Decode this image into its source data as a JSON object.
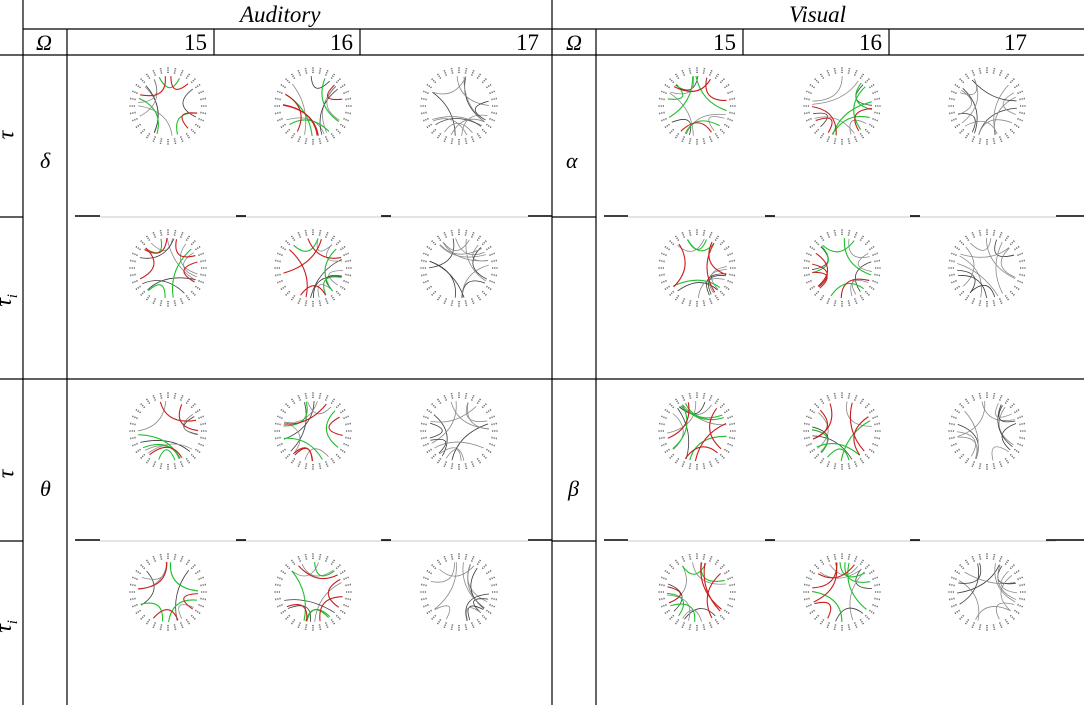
{
  "groups": [
    {
      "title": "Auditory",
      "columns": [
        "15",
        "16",
        "17"
      ],
      "band_top": "δ",
      "band_bottom": "θ"
    },
    {
      "title": "Visual",
      "columns": [
        "15",
        "16",
        "17"
      ],
      "band_top": "α",
      "band_bottom": "β"
    }
  ],
  "omega_label": "Ω",
  "row_labels": [
    "τ",
    "τi",
    "τ",
    "τi"
  ],
  "colors": {
    "line": "#000000",
    "chord_gray": "#8a8a8a",
    "chord_dark": "#3a3a3a",
    "chord_red": "#c81e1e",
    "chord_green": "#1fbf2c",
    "divider": "#c8c8c8"
  },
  "chord_panels": [
    {
      "group": "Auditory",
      "col": "15",
      "row": 0,
      "red": 3,
      "green": 3,
      "gray": 6,
      "seed": 11
    },
    {
      "group": "Auditory",
      "col": "16",
      "row": 0,
      "red": 4,
      "green": 3,
      "gray": 6,
      "seed": 12
    },
    {
      "group": "Auditory",
      "col": "17",
      "row": 0,
      "red": 0,
      "green": 0,
      "gray": 12,
      "seed": 13
    },
    {
      "group": "Auditory",
      "col": "15",
      "row": 1,
      "red": 4,
      "green": 3,
      "gray": 7,
      "seed": 14
    },
    {
      "group": "Auditory",
      "col": "16",
      "row": 1,
      "red": 4,
      "green": 3,
      "gray": 7,
      "seed": 15
    },
    {
      "group": "Auditory",
      "col": "17",
      "row": 1,
      "red": 0,
      "green": 0,
      "gray": 13,
      "seed": 16
    },
    {
      "group": "Auditory",
      "col": "15",
      "row": 2,
      "red": 3,
      "green": 3,
      "gray": 6,
      "seed": 17
    },
    {
      "group": "Auditory",
      "col": "16",
      "row": 2,
      "red": 4,
      "green": 3,
      "gray": 6,
      "seed": 18
    },
    {
      "group": "Auditory",
      "col": "17",
      "row": 2,
      "red": 0,
      "green": 0,
      "gray": 12,
      "seed": 19
    },
    {
      "group": "Auditory",
      "col": "15",
      "row": 3,
      "red": 3,
      "green": 3,
      "gray": 5,
      "seed": 20
    },
    {
      "group": "Auditory",
      "col": "16",
      "row": 3,
      "red": 4,
      "green": 4,
      "gray": 5,
      "seed": 21
    },
    {
      "group": "Auditory",
      "col": "17",
      "row": 3,
      "red": 0,
      "green": 0,
      "gray": 12,
      "seed": 22
    },
    {
      "group": "Visual",
      "col": "15",
      "row": 0,
      "red": 3,
      "green": 4,
      "gray": 6,
      "seed": 31
    },
    {
      "group": "Visual",
      "col": "16",
      "row": 0,
      "red": 3,
      "green": 4,
      "gray": 6,
      "seed": 32
    },
    {
      "group": "Visual",
      "col": "17",
      "row": 0,
      "red": 0,
      "green": 0,
      "gray": 12,
      "seed": 33
    },
    {
      "group": "Visual",
      "col": "15",
      "row": 1,
      "red": 3,
      "green": 3,
      "gray": 7,
      "seed": 34
    },
    {
      "group": "Visual",
      "col": "16",
      "row": 1,
      "red": 4,
      "green": 4,
      "gray": 6,
      "seed": 35
    },
    {
      "group": "Visual",
      "col": "17",
      "row": 1,
      "red": 0,
      "green": 0,
      "gray": 12,
      "seed": 36
    },
    {
      "group": "Visual",
      "col": "15",
      "row": 2,
      "red": 4,
      "green": 4,
      "gray": 6,
      "seed": 37
    },
    {
      "group": "Visual",
      "col": "16",
      "row": 2,
      "red": 4,
      "green": 4,
      "gray": 5,
      "seed": 38
    },
    {
      "group": "Visual",
      "col": "17",
      "row": 2,
      "red": 0,
      "green": 0,
      "gray": 12,
      "seed": 39
    },
    {
      "group": "Visual",
      "col": "15",
      "row": 3,
      "red": 4,
      "green": 4,
      "gray": 6,
      "seed": 40
    },
    {
      "group": "Visual",
      "col": "16",
      "row": 3,
      "red": 4,
      "green": 4,
      "gray": 5,
      "seed": 41
    },
    {
      "group": "Visual",
      "col": "17",
      "row": 3,
      "red": 0,
      "green": 0,
      "gray": 12,
      "seed": 42
    }
  ]
}
